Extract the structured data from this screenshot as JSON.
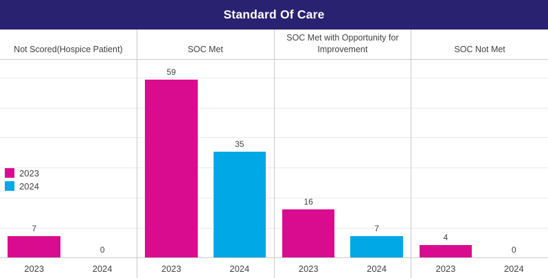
{
  "title": "Standard Of Care",
  "colors": {
    "title_bar_bg": "#292271",
    "title_text": "#ffffff",
    "bar_2023": "#d90c90",
    "bar_2024": "#00a8e5",
    "grid_line": "#e9e9e9",
    "axis_line": "#c9c9c9",
    "separator": "#c9c9c9",
    "label_text": "#404040"
  },
  "legend": {
    "items": [
      {
        "label": "2023",
        "color": "#d90c90"
      },
      {
        "label": "2024",
        "color": "#00a8e5"
      }
    ]
  },
  "chart_data": {
    "type": "bar",
    "title": "Standard Of Care",
    "categories": [
      "2023",
      "2024"
    ],
    "series": [
      {
        "name": "2023",
        "color": "#d90c90"
      },
      {
        "name": "2024",
        "color": "#00a8e5"
      }
    ],
    "panels": [
      {
        "label": "Not Scored(Hospice Patient)",
        "values": [
          7,
          0
        ]
      },
      {
        "label": "SOC Met",
        "values": [
          59,
          35
        ]
      },
      {
        "label": "SOC Met with Opportunity for Improvement",
        "values": [
          16,
          7
        ]
      },
      {
        "label": "SOC Not Met",
        "values": [
          4,
          0
        ]
      }
    ],
    "ylabel": "",
    "xlabel": "",
    "ylim": [
      0,
      60
    ],
    "grid": "on",
    "grid_step": 10,
    "legend_position": "middle-left"
  }
}
